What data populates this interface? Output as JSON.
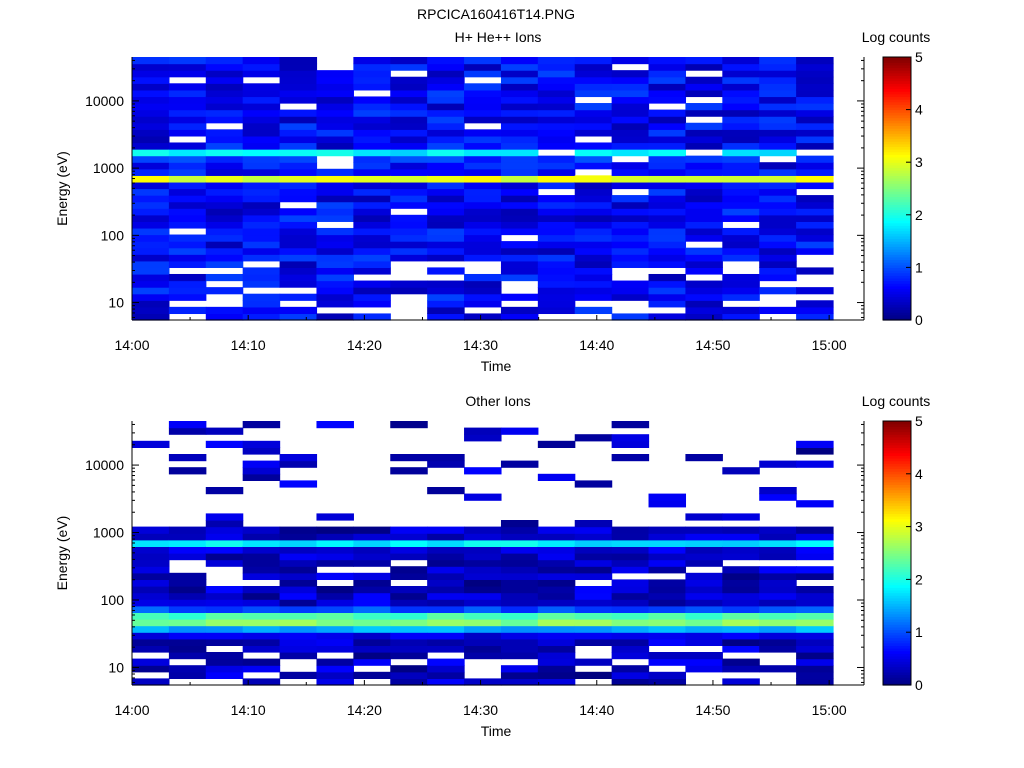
{
  "figure": {
    "title": "RPCICA160416T14.PNG"
  },
  "chart_data": [
    {
      "type": "heatmap",
      "title": "H+ He++ Ions",
      "xlabel": "Time",
      "ylabel": "Energy (eV)",
      "x_ticks": [
        "14:00",
        "14:10",
        "14:20",
        "14:30",
        "14:40",
        "14:50",
        "15:00"
      ],
      "xlim": [
        "14:00",
        "15:03"
      ],
      "y_scale": "log",
      "y_ticks": [
        "10",
        "100",
        "1000",
        "10000"
      ],
      "ylim": [
        5.5,
        45000
      ],
      "time_bins": 19,
      "colorbar": {
        "label": "Log counts",
        "min": 0,
        "max": 5,
        "ticks": [
          "0",
          "1",
          "2",
          "3",
          "4",
          "5"
        ]
      },
      "features": {
        "bands": [
          {
            "energy_eV": 700,
            "log_counts": 3.0
          },
          {
            "energy_eV": 1600,
            "log_counts": 2.2
          }
        ],
        "background_log_counts": 0.6
      }
    },
    {
      "type": "heatmap",
      "title": "Other Ions",
      "xlabel": "Time",
      "ylabel": "Energy (eV)",
      "x_ticks": [
        "14:00",
        "14:10",
        "14:20",
        "14:30",
        "14:40",
        "14:50",
        "15:00"
      ],
      "xlim": [
        "14:00",
        "15:03"
      ],
      "y_scale": "log",
      "y_ticks": [
        "10",
        "100",
        "1000",
        "10000"
      ],
      "ylim": [
        5.5,
        45000
      ],
      "time_bins": 19,
      "colorbar": {
        "label": "Log counts",
        "min": 0,
        "max": 5,
        "ticks": [
          "0",
          "1",
          "2",
          "3",
          "4",
          "5"
        ]
      },
      "features": {
        "bands": [
          {
            "energy_eV": 700,
            "log_counts": 1.8
          },
          {
            "energy_eV": 50,
            "log_counts": 2.6
          }
        ],
        "background_log_counts": 0.3
      }
    }
  ]
}
